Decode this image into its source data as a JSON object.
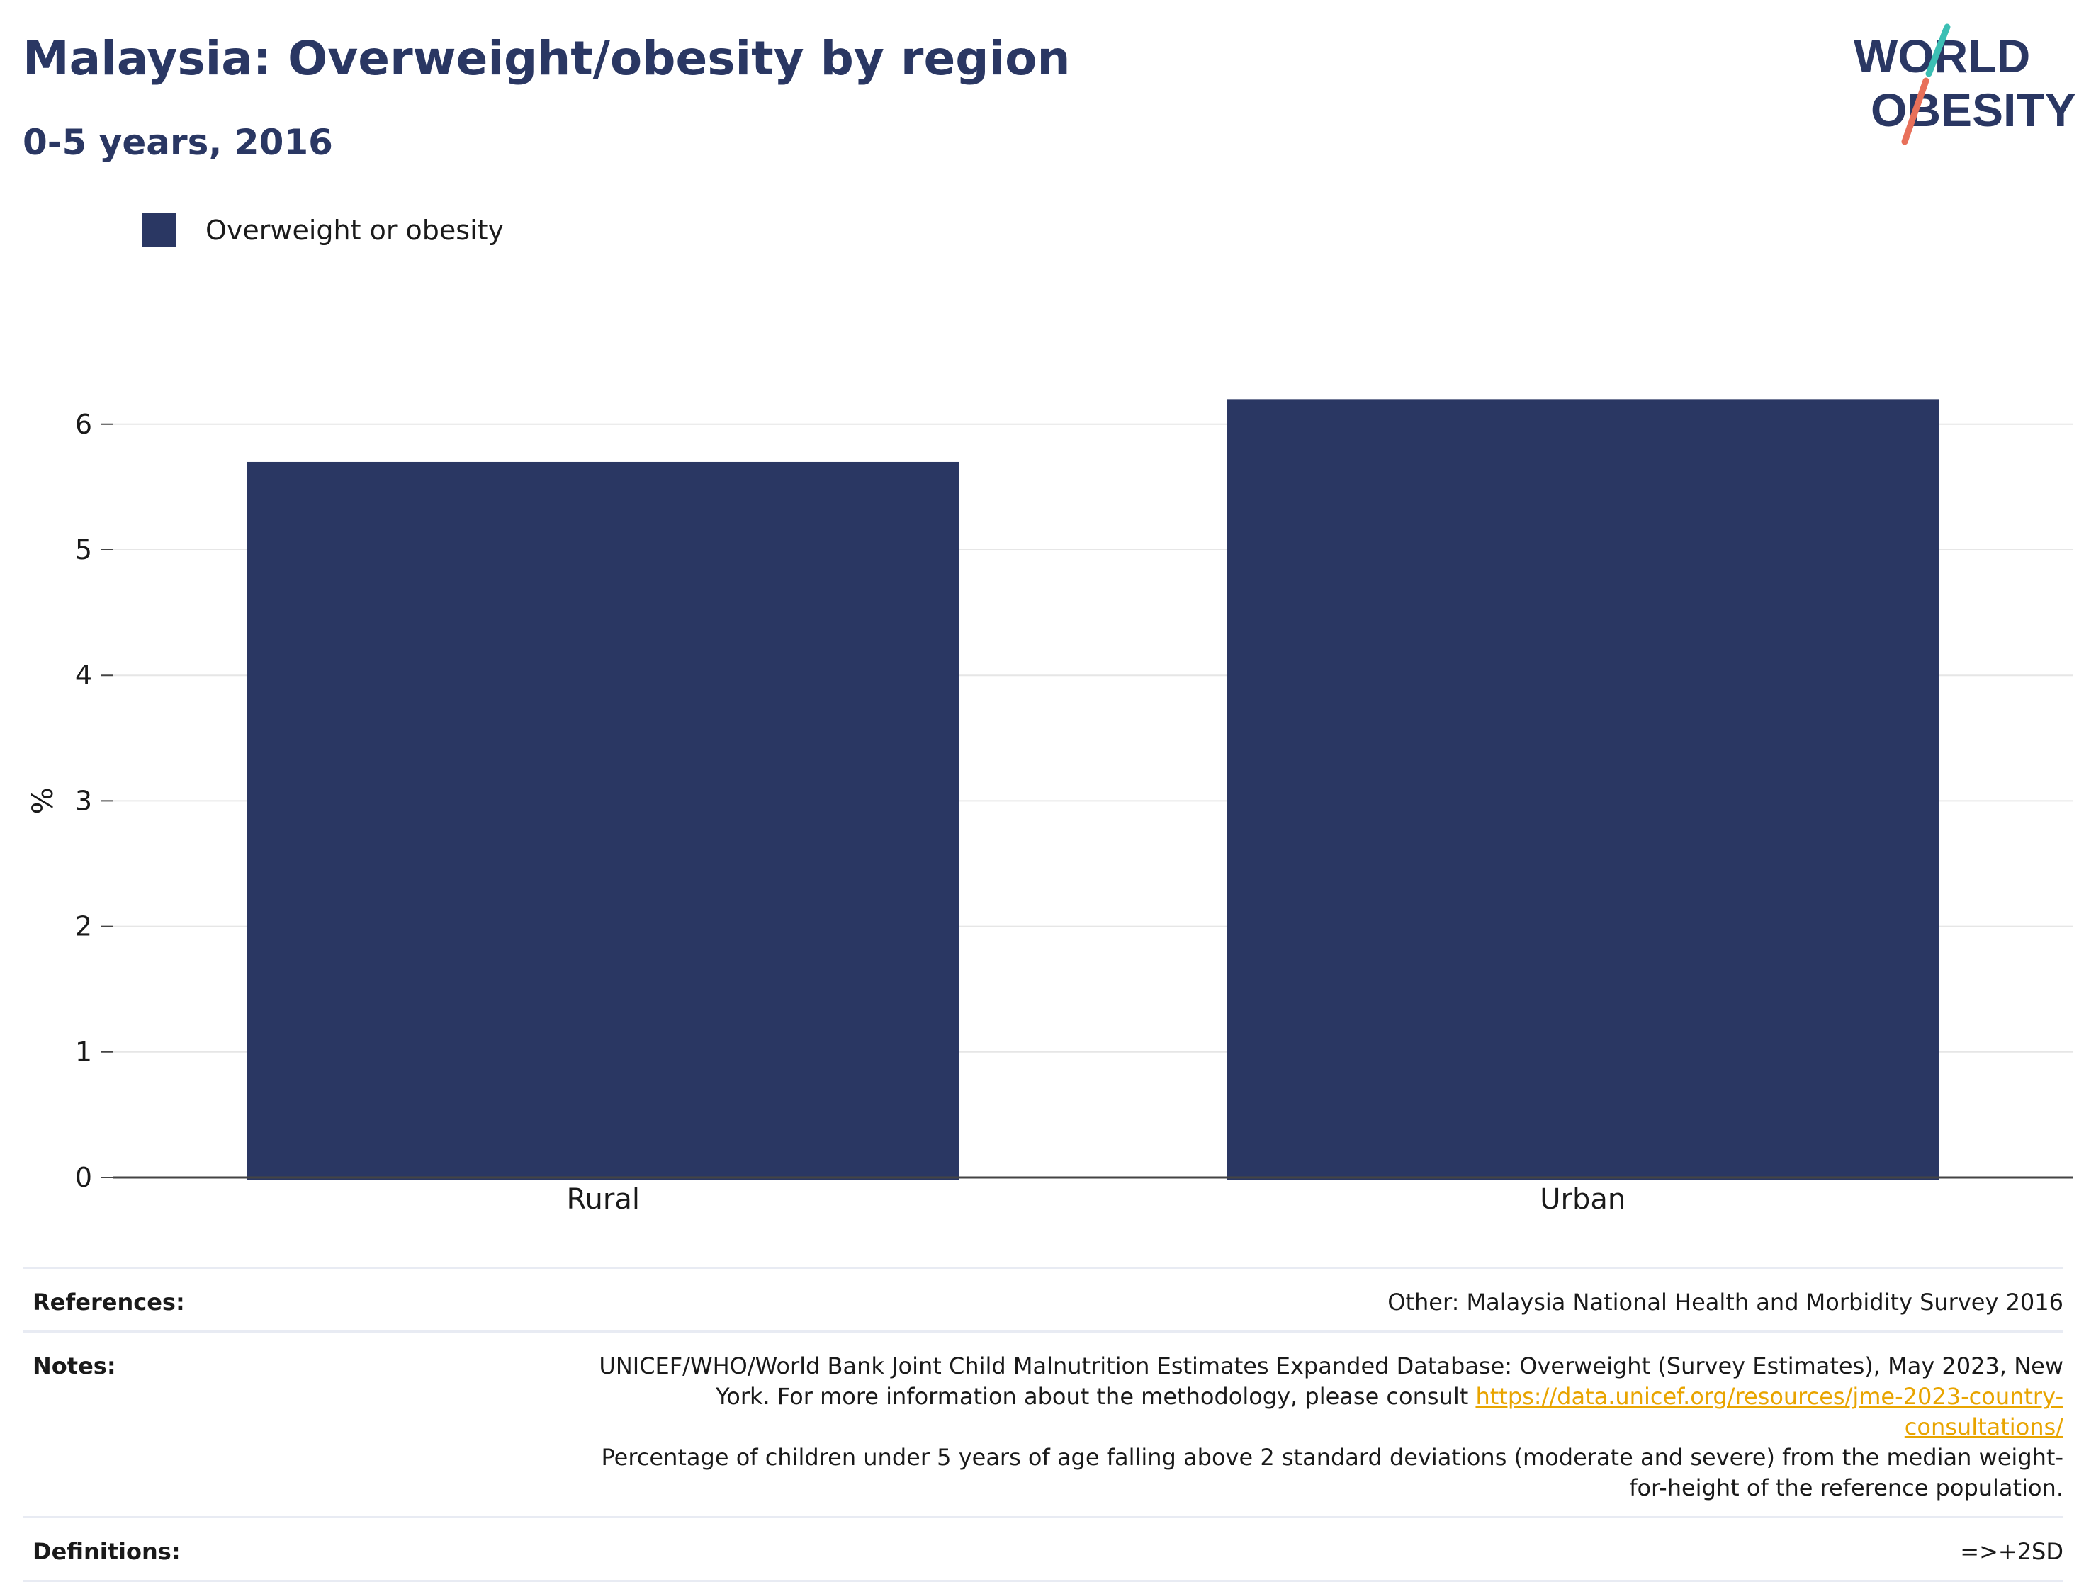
{
  "header": {
    "title": "Malaysia: Overweight/obesity by region",
    "subtitle": "0-5 years, 2016"
  },
  "logo": {
    "text_line1": "WORLD",
    "text_line2": "OBESITY",
    "color_text": "#2a3763",
    "color_slash_top": "#3cbfb4",
    "color_slash_bottom": "#e8705a"
  },
  "legend": {
    "items": [
      {
        "label": "Overweight or obesity",
        "color": "#2a3763"
      }
    ]
  },
  "chart_data": {
    "type": "bar",
    "categories": [
      "Rural",
      "Urban"
    ],
    "series": [
      {
        "name": "Overweight or obesity",
        "values": [
          5.7,
          6.2
        ],
        "color": "#2a3763"
      }
    ],
    "xlabel": "",
    "ylabel": "%",
    "ylim": [
      0,
      6.5
    ],
    "yticks": [
      0,
      1,
      2,
      3,
      4,
      5,
      6
    ],
    "grid": true,
    "legend_position": "top-left"
  },
  "footer": {
    "references_label": "References:",
    "references_value": "Other: Malaysia National Health and Morbidity Survey 2016",
    "notes_label": "Notes:",
    "notes_text_before_link": "UNICEF/WHO/World Bank Joint Child Malnutrition Estimates Expanded Database: Overweight (Survey Estimates), May 2023, New York. For more information about the methodology, please consult ",
    "notes_link": "https://data.unicef.org/resources/jme-2023-country-consultations/",
    "notes_text_after_link": "Percentage of children under 5 years of age falling above 2 standard deviations (moderate and severe) from the median weight-for-height of the reference population.",
    "definitions_label": "Definitions:",
    "definitions_value": "=>+2SD"
  }
}
